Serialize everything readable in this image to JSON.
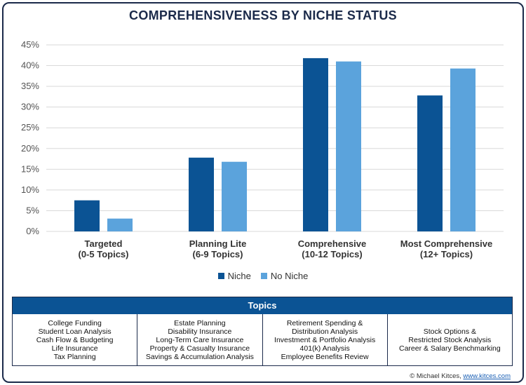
{
  "title": "COMPREHENSIVENESS BY NICHE STATUS",
  "colors": {
    "niche": "#0b5394",
    "no_niche": "#5ba3dc",
    "grid": "#d9d9d9",
    "axis_text": "#555555"
  },
  "chart_data": {
    "type": "bar",
    "title": "COMPREHENSIVENESS BY NICHE STATUS",
    "categories": [
      [
        "Targeted",
        "(0-5 Topics)"
      ],
      [
        "Planning Lite",
        "(6-9 Topics)"
      ],
      [
        "Comprehensive",
        "(10-12 Topics)"
      ],
      [
        "Most Comprehensive",
        "(12+ Topics)"
      ]
    ],
    "series": [
      {
        "name": "Niche",
        "values": [
          7.5,
          17.8,
          41.8,
          32.8
        ]
      },
      {
        "name": "No Niche",
        "values": [
          3.1,
          16.8,
          41.0,
          39.3
        ]
      }
    ],
    "ylim": [
      0,
      45
    ],
    "yticks": [
      "0%",
      "5%",
      "10%",
      "15%",
      "20%",
      "25%",
      "30%",
      "35%",
      "40%",
      "45%"
    ],
    "grid": true,
    "legend_position": "bottom"
  },
  "legend": {
    "niche": "Niche",
    "no_niche": "No Niche"
  },
  "topics": {
    "header": "Topics",
    "columns": [
      [
        "College Funding",
        "Student Loan Analysis",
        "Cash Flow & Budgeting",
        "Life Insurance",
        "Tax Planning"
      ],
      [
        "Estate Planning",
        "Disability Insurance",
        "Long-Term Care Insurance",
        "Property & Casualty Insurance",
        "Savings & Accumulation Analysis"
      ],
      [
        "Retirement Spending &",
        "Distribution Analysis",
        "Investment & Portfolio Analysis",
        "401(k) Analysis",
        "Employee Benefits Review"
      ],
      [
        "Stock Options &",
        "Restricted Stock Analysis",
        "Career & Salary Benchmarking"
      ]
    ]
  },
  "credit": {
    "text": "© Michael Kitces, ",
    "link": "www.kitces.com"
  }
}
